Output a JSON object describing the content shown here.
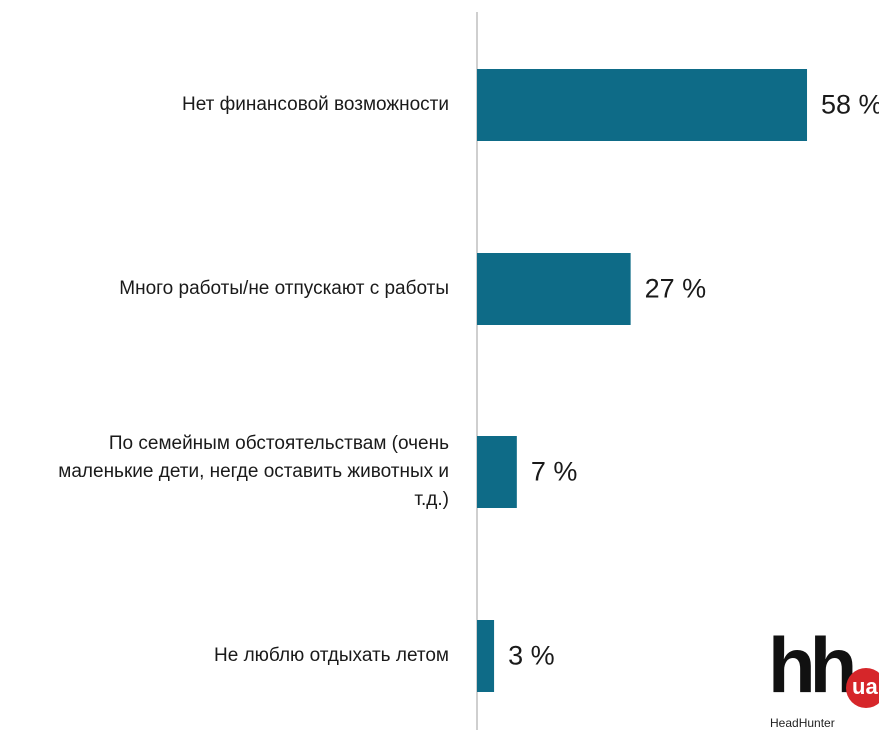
{
  "chart_data": {
    "type": "bar",
    "orientation": "horizontal",
    "categories": [
      "Нет финансовой возможности",
      "Много работы/не отпускают с работы",
      "По семейным обстоятельствам (очень маленькие дети, негде оставить животных и т.д.)",
      "Не люблю отдыхать летом"
    ],
    "category_lines": [
      [
        "Нет финансовой возможности"
      ],
      [
        "Много работы/не отпускают с работы"
      ],
      [
        "По семейным обстоятельствам (очень",
        "маленькие дети, негде оставить животных и",
        "т.д.)"
      ],
      [
        "Не люблю отдыхать летом"
      ]
    ],
    "values": [
      58,
      27,
      7,
      3
    ],
    "value_labels": [
      "58 %",
      "27 %",
      "7 %",
      "3 %"
    ],
    "bar_color": "#0e6b87",
    "xlim": [
      0,
      100
    ],
    "grid": false
  },
  "logo": {
    "mark": "hh",
    "badge": "ua",
    "subtitle": "HeadHunter",
    "badge_color": "#d6262a"
  }
}
